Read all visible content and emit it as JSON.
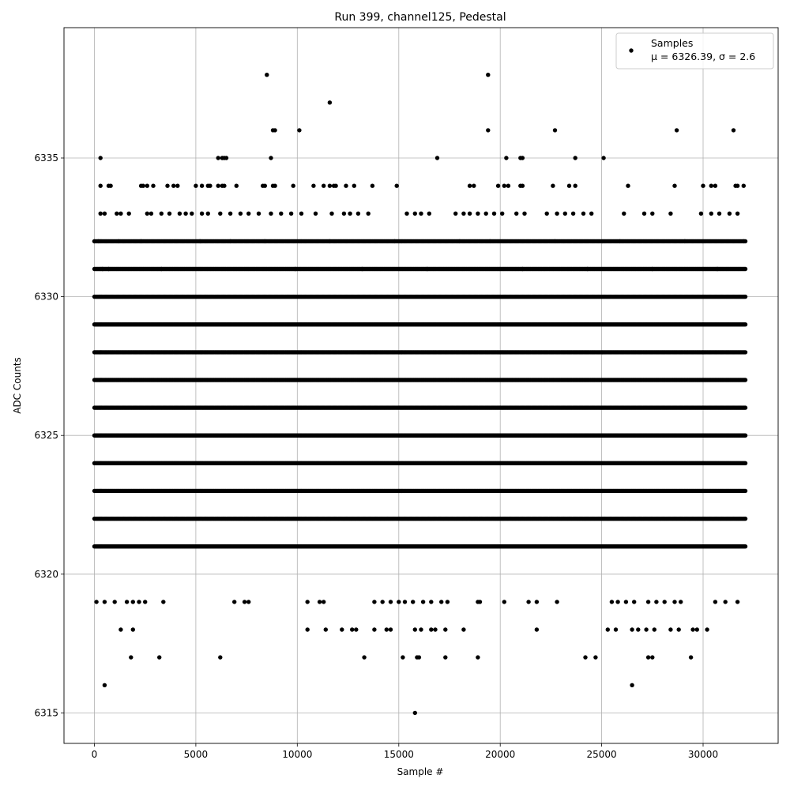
{
  "chart_data": {
    "type": "scatter",
    "title": "Run 399, channel125, Pedestal",
    "xlabel": "Sample #",
    "ylabel": "ADC Counts",
    "xlim": [
      -1500,
      33700
    ],
    "ylim": [
      6313.9,
      6339.7
    ],
    "xticks": [
      0,
      5000,
      10000,
      15000,
      20000,
      25000,
      30000
    ],
    "yticks": [
      6315,
      6320,
      6325,
      6330,
      6335
    ],
    "grid": true,
    "legend": {
      "placement": "top-right",
      "entries": [
        {
          "label": "Samples",
          "sublabel": "μ = 6326.39, σ = 2.6",
          "color": "#000000",
          "marker": "circle"
        }
      ]
    },
    "series": [
      {
        "name": "Samples",
        "color": "#000000",
        "x_range": [
          0,
          32100
        ],
        "dense_levels": [
          6321,
          6322,
          6323,
          6324,
          6325,
          6326,
          6327,
          6328,
          6329,
          6330,
          6331,
          6332
        ],
        "points": [
          [
            0,
            6332
          ],
          [
            200,
            6332
          ],
          [
            400,
            6331
          ],
          [
            700,
            6331
          ],
          [
            1200,
            6332
          ],
          [
            2300,
            6332
          ],
          [
            3300,
            6331
          ],
          [
            5200,
            6332
          ],
          [
            6700,
            6332
          ],
          [
            8400,
            6332
          ],
          [
            9900,
            6331
          ],
          [
            11600,
            6332
          ],
          [
            13200,
            6331
          ],
          [
            14800,
            6332
          ],
          [
            16400,
            6331
          ],
          [
            18000,
            6332
          ],
          [
            19500,
            6332
          ],
          [
            21100,
            6331
          ],
          [
            22700,
            6332
          ],
          [
            24300,
            6331
          ],
          [
            25900,
            6332
          ],
          [
            27500,
            6331
          ],
          [
            29100,
            6332
          ],
          [
            30700,
            6331
          ],
          [
            32000,
            6332
          ],
          [
            300,
            6335
          ],
          [
            8500,
            6338
          ],
          [
            11600,
            6337
          ],
          [
            19400,
            6338
          ],
          [
            8800,
            6336
          ],
          [
            8900,
            6336
          ],
          [
            10100,
            6336
          ],
          [
            19400,
            6336
          ],
          [
            22700,
            6336
          ],
          [
            28700,
            6336
          ],
          [
            31500,
            6336
          ],
          [
            6100,
            6335
          ],
          [
            6300,
            6335
          ],
          [
            6400,
            6335
          ],
          [
            6500,
            6335
          ],
          [
            8700,
            6335
          ],
          [
            16900,
            6335
          ],
          [
            20300,
            6335
          ],
          [
            21000,
            6335
          ],
          [
            21100,
            6335
          ],
          [
            23700,
            6335
          ],
          [
            25100,
            6335
          ],
          [
            300,
            6334
          ],
          [
            700,
            6334
          ],
          [
            800,
            6334
          ],
          [
            2300,
            6334
          ],
          [
            2400,
            6334
          ],
          [
            2600,
            6334
          ],
          [
            2900,
            6334
          ],
          [
            3600,
            6334
          ],
          [
            3900,
            6334
          ],
          [
            4100,
            6334
          ],
          [
            5000,
            6334
          ],
          [
            5300,
            6334
          ],
          [
            5600,
            6334
          ],
          [
            5700,
            6334
          ],
          [
            6100,
            6334
          ],
          [
            6300,
            6334
          ],
          [
            6400,
            6334
          ],
          [
            7000,
            6334
          ],
          [
            8300,
            6334
          ],
          [
            8400,
            6334
          ],
          [
            8800,
            6334
          ],
          [
            8900,
            6334
          ],
          [
            9800,
            6334
          ],
          [
            10800,
            6334
          ],
          [
            11300,
            6334
          ],
          [
            11600,
            6334
          ],
          [
            11800,
            6334
          ],
          [
            11900,
            6334
          ],
          [
            12400,
            6334
          ],
          [
            12800,
            6334
          ],
          [
            13700,
            6334
          ],
          [
            14900,
            6334
          ],
          [
            18500,
            6334
          ],
          [
            18700,
            6334
          ],
          [
            19900,
            6334
          ],
          [
            20200,
            6334
          ],
          [
            20400,
            6334
          ],
          [
            21000,
            6334
          ],
          [
            21100,
            6334
          ],
          [
            22600,
            6334
          ],
          [
            23400,
            6334
          ],
          [
            23700,
            6334
          ],
          [
            26300,
            6334
          ],
          [
            28600,
            6334
          ],
          [
            30000,
            6334
          ],
          [
            30400,
            6334
          ],
          [
            30600,
            6334
          ],
          [
            31600,
            6334
          ],
          [
            31700,
            6334
          ],
          [
            32000,
            6334
          ],
          [
            300,
            6333
          ],
          [
            500,
            6333
          ],
          [
            1100,
            6333
          ],
          [
            1300,
            6333
          ],
          [
            1700,
            6333
          ],
          [
            2600,
            6333
          ],
          [
            2800,
            6333
          ],
          [
            3300,
            6333
          ],
          [
            3700,
            6333
          ],
          [
            4200,
            6333
          ],
          [
            4500,
            6333
          ],
          [
            4800,
            6333
          ],
          [
            5300,
            6333
          ],
          [
            5600,
            6333
          ],
          [
            6200,
            6333
          ],
          [
            6700,
            6333
          ],
          [
            7200,
            6333
          ],
          [
            7600,
            6333
          ],
          [
            8100,
            6333
          ],
          [
            8700,
            6333
          ],
          [
            9200,
            6333
          ],
          [
            9700,
            6333
          ],
          [
            10200,
            6333
          ],
          [
            10900,
            6333
          ],
          [
            11700,
            6333
          ],
          [
            12300,
            6333
          ],
          [
            12600,
            6333
          ],
          [
            13000,
            6333
          ],
          [
            13500,
            6333
          ],
          [
            15400,
            6333
          ],
          [
            15800,
            6333
          ],
          [
            16100,
            6333
          ],
          [
            16500,
            6333
          ],
          [
            17800,
            6333
          ],
          [
            18200,
            6333
          ],
          [
            18500,
            6333
          ],
          [
            18900,
            6333
          ],
          [
            19300,
            6333
          ],
          [
            19700,
            6333
          ],
          [
            20100,
            6333
          ],
          [
            20800,
            6333
          ],
          [
            21200,
            6333
          ],
          [
            22300,
            6333
          ],
          [
            22800,
            6333
          ],
          [
            23200,
            6333
          ],
          [
            23600,
            6333
          ],
          [
            24100,
            6333
          ],
          [
            24500,
            6333
          ],
          [
            26100,
            6333
          ],
          [
            27100,
            6333
          ],
          [
            27500,
            6333
          ],
          [
            28400,
            6333
          ],
          [
            29900,
            6333
          ],
          [
            30400,
            6333
          ],
          [
            30800,
            6333
          ],
          [
            31300,
            6333
          ],
          [
            31700,
            6333
          ],
          [
            100,
            6319
          ],
          [
            500,
            6319
          ],
          [
            1000,
            6319
          ],
          [
            1600,
            6319
          ],
          [
            1900,
            6319
          ],
          [
            2200,
            6319
          ],
          [
            2500,
            6319
          ],
          [
            3400,
            6319
          ],
          [
            6900,
            6319
          ],
          [
            7400,
            6319
          ],
          [
            7600,
            6319
          ],
          [
            10500,
            6319
          ],
          [
            11100,
            6319
          ],
          [
            11300,
            6319
          ],
          [
            13800,
            6319
          ],
          [
            14200,
            6319
          ],
          [
            14600,
            6319
          ],
          [
            15000,
            6319
          ],
          [
            15300,
            6319
          ],
          [
            15700,
            6319
          ],
          [
            16200,
            6319
          ],
          [
            16600,
            6319
          ],
          [
            17100,
            6319
          ],
          [
            17400,
            6319
          ],
          [
            18900,
            6319
          ],
          [
            19000,
            6319
          ],
          [
            20200,
            6319
          ],
          [
            21400,
            6319
          ],
          [
            21800,
            6319
          ],
          [
            22800,
            6319
          ],
          [
            25500,
            6319
          ],
          [
            25800,
            6319
          ],
          [
            26200,
            6319
          ],
          [
            26600,
            6319
          ],
          [
            27300,
            6319
          ],
          [
            27700,
            6319
          ],
          [
            28100,
            6319
          ],
          [
            28600,
            6319
          ],
          [
            28900,
            6319
          ],
          [
            30600,
            6319
          ],
          [
            31100,
            6319
          ],
          [
            31700,
            6319
          ],
          [
            1300,
            6318
          ],
          [
            1900,
            6318
          ],
          [
            10500,
            6318
          ],
          [
            11400,
            6318
          ],
          [
            12200,
            6318
          ],
          [
            12700,
            6318
          ],
          [
            12900,
            6318
          ],
          [
            13800,
            6318
          ],
          [
            14400,
            6318
          ],
          [
            14600,
            6318
          ],
          [
            15800,
            6318
          ],
          [
            16100,
            6318
          ],
          [
            16600,
            6318
          ],
          [
            16800,
            6318
          ],
          [
            17300,
            6318
          ],
          [
            18200,
            6318
          ],
          [
            21800,
            6318
          ],
          [
            25300,
            6318
          ],
          [
            25700,
            6318
          ],
          [
            26500,
            6318
          ],
          [
            26800,
            6318
          ],
          [
            27200,
            6318
          ],
          [
            27600,
            6318
          ],
          [
            28400,
            6318
          ],
          [
            28800,
            6318
          ],
          [
            29500,
            6318
          ],
          [
            29700,
            6318
          ],
          [
            30200,
            6318
          ],
          [
            1800,
            6317
          ],
          [
            3200,
            6317
          ],
          [
            6200,
            6317
          ],
          [
            13300,
            6317
          ],
          [
            15200,
            6317
          ],
          [
            15900,
            6317
          ],
          [
            16000,
            6317
          ],
          [
            17300,
            6317
          ],
          [
            18900,
            6317
          ],
          [
            24200,
            6317
          ],
          [
            24700,
            6317
          ],
          [
            27300,
            6317
          ],
          [
            27500,
            6317
          ],
          [
            29400,
            6317
          ],
          [
            500,
            6316
          ],
          [
            26500,
            6316
          ],
          [
            15800,
            6315
          ]
        ]
      }
    ]
  }
}
